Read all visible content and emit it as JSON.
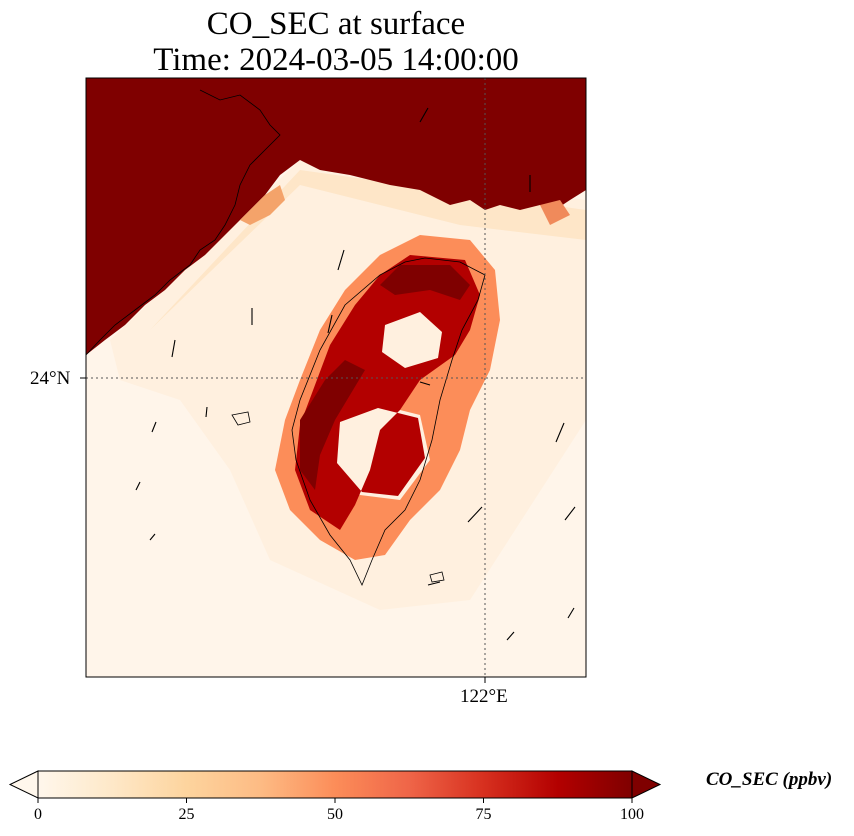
{
  "title": {
    "line1": "CO_SEC at surface",
    "line2": "Time: 2024-03-05 14:00:00"
  },
  "map": {
    "lat_tick": "24°N",
    "lon_tick": "122°E",
    "fill_colormap": "OrRd",
    "high_color": "#7f0000",
    "low_color": "#fff7ec"
  },
  "colorbar": {
    "label": "CO_SEC (ppbv)",
    "ticks": [
      "0",
      "25",
      "50",
      "75",
      "100"
    ],
    "min": 0,
    "max": 100,
    "extend": "both"
  }
}
